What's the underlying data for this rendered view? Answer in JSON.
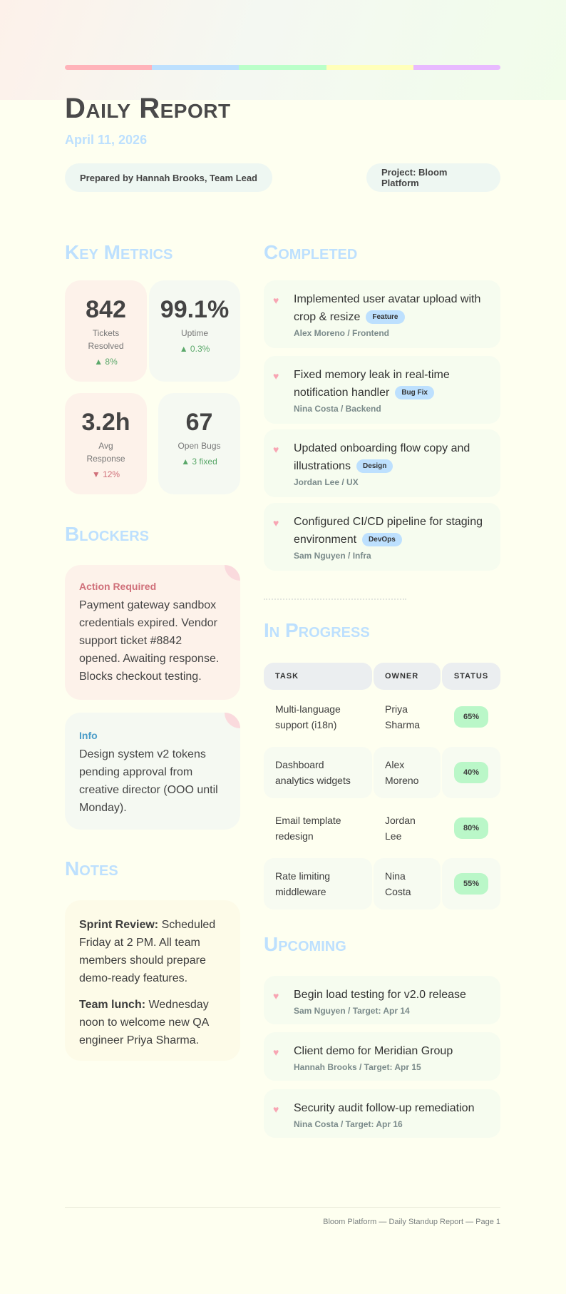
{
  "header": {
    "title": "Daily Report",
    "date": "April 11, 2026",
    "prepared_by": "Prepared by Hannah Brooks, Team Lead",
    "project": "Project: Bloom Platform",
    "rainbow_colors": [
      "#ffb3ba",
      "#bde0fe",
      "#baffc9",
      "#ffffba",
      "#e8baff"
    ]
  },
  "key_metrics": {
    "heading": "Key Metrics",
    "items": [
      {
        "value": "842",
        "label": "Tickets Resolved",
        "delta": "▲ 8%",
        "trend": "up"
      },
      {
        "value": "99.1%",
        "label": "Uptime",
        "delta": "▲ 0.3%",
        "trend": "up"
      },
      {
        "value": "3.2h",
        "label": "Avg Response",
        "delta": "▼ 12%",
        "trend": "down"
      },
      {
        "value": "67",
        "label": "Open Bugs",
        "delta": "▲ 3 fixed",
        "trend": "up"
      }
    ]
  },
  "blockers": {
    "heading": "Blockers",
    "items": [
      {
        "title": "Action Required",
        "body": "Payment gateway sandbox credentials expired. Vendor support ticket #8842 opened. Awaiting response. Blocks checkout testing."
      },
      {
        "title": "Info",
        "body": "Design system v2 tokens pending approval from creative director (OOO until Monday)."
      }
    ]
  },
  "notes": {
    "heading": "Notes",
    "items": [
      {
        "label": "Sprint Review:",
        "text": " Scheduled Friday at 2 PM. All team members should prepare demo-ready features."
      },
      {
        "label": "Team lunch:",
        "text": " Wednesday noon to welcome new QA engineer Priya Sharma."
      }
    ]
  },
  "completed": {
    "heading": "Completed",
    "items": [
      {
        "title": "Implemented user avatar upload with crop & resize",
        "tag": "Feature",
        "meta": "Alex Moreno / Frontend"
      },
      {
        "title": "Fixed memory leak in real-time notification handler",
        "tag": "Bug Fix",
        "meta": "Nina Costa / Backend"
      },
      {
        "title": "Updated onboarding flow copy and illustrations",
        "tag": "Design",
        "meta": "Jordan Lee / UX"
      },
      {
        "title": "Configured CI/CD pipeline for staging environment",
        "tag": "DevOps",
        "meta": "Sam Nguyen / Infra"
      }
    ]
  },
  "in_progress": {
    "heading": "In Progress",
    "columns": [
      "TASK",
      "OWNER",
      "STATUS"
    ],
    "rows": [
      {
        "task": "Multi-language support (i18n)",
        "owner": "Priya Sharma",
        "status": "65%"
      },
      {
        "task": "Dashboard analytics widgets",
        "owner": "Alex Moreno",
        "status": "40%"
      },
      {
        "task": "Email template redesign",
        "owner": "Jordan Lee",
        "status": "80%"
      },
      {
        "task": "Rate limiting middleware",
        "owner": "Nina Costa",
        "status": "55%"
      }
    ]
  },
  "upcoming": {
    "heading": "Upcoming",
    "items": [
      {
        "title": "Begin load testing for v2.0 release",
        "meta": "Sam Nguyen / Target: Apr 14"
      },
      {
        "title": "Client demo for Meridian Group",
        "meta": "Hannah Brooks / Target: Apr 15"
      },
      {
        "title": "Security audit follow-up remediation",
        "meta": "Nina Costa / Target: Apr 16"
      }
    ]
  },
  "footer": {
    "text": "Bloom Platform — Daily Standup Report — Page 1"
  }
}
